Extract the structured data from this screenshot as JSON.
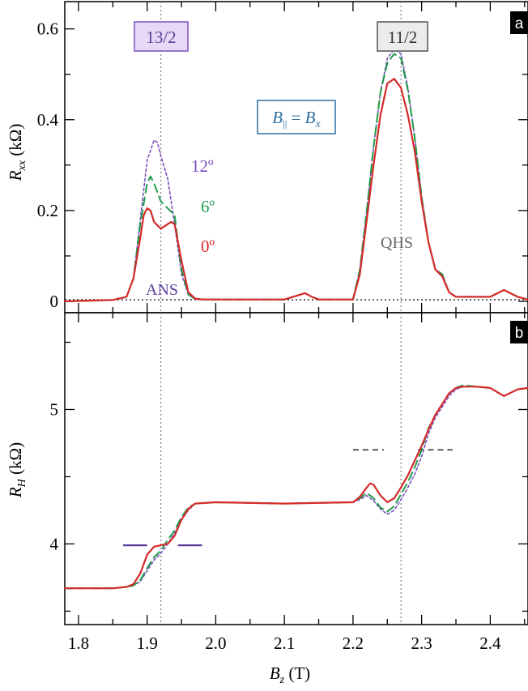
{
  "chart_data": [
    {
      "panel": "a",
      "type": "line",
      "ylabel_main": "R",
      "ylabel_sub": "xx",
      "ylabel_unit": " (kΩ)",
      "xlabel_main": "B",
      "xlabel_sub": "z",
      "xlabel_unit": " (T)",
      "xlim": [
        1.78,
        2.455
      ],
      "ylim": [
        -0.025,
        0.66
      ],
      "x_ticks": [
        "1.8",
        "1.9",
        "2.0",
        "2.1",
        "2.2",
        "2.3",
        "2.4"
      ],
      "y_ticks": [
        "0",
        "0.2",
        "0.4",
        "0.6"
      ],
      "y_tick_values": [
        0,
        0.2,
        0.4,
        0.6
      ],
      "series": [
        {
          "name": "12º",
          "color": "#7b4fbf",
          "style": "dotted",
          "x": [
            1.78,
            1.85,
            1.87,
            1.88,
            1.89,
            1.9,
            1.91,
            1.915,
            1.92,
            1.93,
            1.94,
            1.95,
            1.96,
            1.97,
            1.98,
            2.0,
            2.1,
            2.13,
            2.14,
            2.15,
            2.2,
            2.21,
            2.22,
            2.23,
            2.24,
            2.25,
            2.26,
            2.27,
            2.28,
            2.29,
            2.3,
            2.31,
            2.32,
            2.33,
            2.34,
            2.35,
            2.4,
            2.42,
            2.44,
            2.455
          ],
          "values": [
            0.0,
            0.003,
            0.01,
            0.05,
            0.18,
            0.31,
            0.355,
            0.35,
            0.32,
            0.27,
            0.17,
            0.06,
            0.015,
            0.005,
            0.004,
            0.004,
            0.004,
            0.018,
            0.01,
            0.004,
            0.004,
            0.07,
            0.2,
            0.34,
            0.46,
            0.535,
            0.555,
            0.545,
            0.47,
            0.36,
            0.23,
            0.13,
            0.07,
            0.06,
            0.02,
            0.01,
            0.01,
            0.025,
            0.01,
            0.004
          ]
        },
        {
          "name": "6º",
          "color": "#1f9a4a",
          "style": "dashed",
          "x": [
            1.78,
            1.85,
            1.87,
            1.88,
            1.89,
            1.9,
            1.905,
            1.91,
            1.92,
            1.93,
            1.94,
            1.95,
            1.96,
            1.97,
            1.98,
            2.0,
            2.1,
            2.13,
            2.14,
            2.15,
            2.2,
            2.21,
            2.22,
            2.23,
            2.24,
            2.25,
            2.26,
            2.27,
            2.28,
            2.29,
            2.3,
            2.31,
            2.32,
            2.33,
            2.34,
            2.35,
            2.4,
            2.42,
            2.44,
            2.455
          ],
          "values": [
            0.0,
            0.003,
            0.01,
            0.05,
            0.17,
            0.26,
            0.275,
            0.26,
            0.22,
            0.205,
            0.19,
            0.07,
            0.015,
            0.005,
            0.004,
            0.004,
            0.004,
            0.018,
            0.01,
            0.004,
            0.004,
            0.07,
            0.2,
            0.34,
            0.46,
            0.525,
            0.545,
            0.535,
            0.465,
            0.36,
            0.23,
            0.13,
            0.07,
            0.06,
            0.02,
            0.01,
            0.01,
            0.025,
            0.01,
            0.004
          ]
        },
        {
          "name": "0º",
          "color": "#d42a2a",
          "style": "solid",
          "x": [
            1.78,
            1.85,
            1.87,
            1.88,
            1.89,
            1.895,
            1.9,
            1.905,
            1.91,
            1.92,
            1.93,
            1.935,
            1.94,
            1.95,
            1.96,
            1.97,
            1.98,
            2.0,
            2.1,
            2.13,
            2.14,
            2.15,
            2.2,
            2.21,
            2.22,
            2.23,
            2.24,
            2.25,
            2.26,
            2.27,
            2.28,
            2.29,
            2.3,
            2.31,
            2.32,
            2.33,
            2.34,
            2.35,
            2.4,
            2.42,
            2.44,
            2.455
          ],
          "values": [
            0.0,
            0.003,
            0.01,
            0.05,
            0.14,
            0.19,
            0.205,
            0.2,
            0.175,
            0.16,
            0.17,
            0.175,
            0.17,
            0.09,
            0.02,
            0.006,
            0.004,
            0.004,
            0.004,
            0.018,
            0.01,
            0.004,
            0.004,
            0.06,
            0.18,
            0.3,
            0.41,
            0.48,
            0.49,
            0.47,
            0.41,
            0.33,
            0.22,
            0.13,
            0.07,
            0.055,
            0.02,
            0.01,
            0.01,
            0.025,
            0.01,
            0.004
          ]
        }
      ],
      "reference_line_y": 0,
      "vertical_markers_x": [
        1.92,
        2.27
      ],
      "annotations": {
        "fraction_left": "13/2",
        "fraction_right": "11/2",
        "field_label_main": "B",
        "field_label_sub": "||",
        "field_label_eq": " = ",
        "field_label_main2": "B",
        "field_label_sub2": "x",
        "ans": "ANS",
        "qhs": "QHS"
      }
    },
    {
      "panel": "b",
      "type": "line",
      "ylabel_main": "R",
      "ylabel_sub": "H",
      "ylabel_unit": " (kΩ)",
      "xlim": [
        1.78,
        2.455
      ],
      "ylim": [
        3.4,
        5.72
      ],
      "y_ticks": [
        "4",
        "5"
      ],
      "y_tick_values": [
        4,
        5
      ],
      "series": [
        {
          "name": "12º",
          "color": "#7b4fbf",
          "style": "dotted",
          "x": [
            1.78,
            1.85,
            1.87,
            1.88,
            1.89,
            1.9,
            1.91,
            1.92,
            1.93,
            1.94,
            1.95,
            1.96,
            1.97,
            2.0,
            2.1,
            2.2,
            2.21,
            2.22,
            2.23,
            2.24,
            2.25,
            2.26,
            2.27,
            2.28,
            2.29,
            2.3,
            2.31,
            2.32,
            2.33,
            2.34,
            2.35,
            2.36,
            2.38,
            2.4,
            2.42,
            2.44,
            2.455
          ],
          "values": [
            3.67,
            3.67,
            3.68,
            3.69,
            3.72,
            3.8,
            3.88,
            3.93,
            4.0,
            4.08,
            4.18,
            4.25,
            4.3,
            4.31,
            4.3,
            4.31,
            4.33,
            4.36,
            4.32,
            4.26,
            4.22,
            4.25,
            4.33,
            4.42,
            4.52,
            4.65,
            4.82,
            4.94,
            5.02,
            5.1,
            5.15,
            5.17,
            5.17,
            5.16,
            5.1,
            5.15,
            5.16
          ]
        },
        {
          "name": "6º",
          "color": "#1f9a4a",
          "style": "dashed",
          "x": [
            1.78,
            1.85,
            1.87,
            1.88,
            1.89,
            1.9,
            1.91,
            1.92,
            1.93,
            1.94,
            1.95,
            1.96,
            1.97,
            2.0,
            2.1,
            2.2,
            2.21,
            2.22,
            2.23,
            2.24,
            2.25,
            2.26,
            2.27,
            2.28,
            2.29,
            2.3,
            2.31,
            2.32,
            2.33,
            2.34,
            2.35,
            2.36,
            2.38,
            2.4,
            2.42,
            2.44,
            2.455
          ],
          "values": [
            3.67,
            3.67,
            3.68,
            3.69,
            3.73,
            3.82,
            3.9,
            3.95,
            4.03,
            4.1,
            4.2,
            4.27,
            4.3,
            4.31,
            4.3,
            4.31,
            4.34,
            4.38,
            4.34,
            4.27,
            4.24,
            4.28,
            4.37,
            4.46,
            4.57,
            4.7,
            4.86,
            4.96,
            5.04,
            5.12,
            5.16,
            5.18,
            5.17,
            5.16,
            5.1,
            5.15,
            5.16
          ]
        },
        {
          "name": "0º",
          "color": "#d42a2a",
          "style": "solid",
          "x": [
            1.78,
            1.85,
            1.87,
            1.88,
            1.89,
            1.9,
            1.91,
            1.92,
            1.93,
            1.94,
            1.95,
            1.96,
            1.97,
            2.0,
            2.1,
            2.2,
            2.21,
            2.22,
            2.225,
            2.23,
            2.24,
            2.25,
            2.26,
            2.27,
            2.28,
            2.29,
            2.3,
            2.31,
            2.32,
            2.33,
            2.34,
            2.35,
            2.36,
            2.38,
            2.4,
            2.42,
            2.44,
            2.455
          ],
          "values": [
            3.67,
            3.67,
            3.68,
            3.7,
            3.78,
            3.92,
            3.98,
            3.99,
            4.0,
            4.06,
            4.18,
            4.26,
            4.3,
            4.31,
            4.3,
            4.31,
            4.35,
            4.42,
            4.45,
            4.44,
            4.36,
            4.31,
            4.34,
            4.42,
            4.51,
            4.62,
            4.73,
            4.85,
            4.96,
            5.04,
            5.12,
            5.16,
            5.17,
            5.17,
            5.16,
            5.1,
            5.15,
            5.16
          ]
        }
      ],
      "vertical_markers_x": [
        1.92,
        2.27
      ],
      "plateau_marks": [
        {
          "kind": "solid",
          "color": "#5b3f9a",
          "y": 3.99,
          "segments": [
            [
              1.865,
              1.9
            ],
            [
              1.945,
              1.98
            ]
          ]
        },
        {
          "kind": "dashed",
          "color": "#333333",
          "y": 4.7,
          "segments": [
            [
              2.2,
              2.245
            ],
            [
              2.295,
              2.345
            ]
          ]
        }
      ]
    }
  ]
}
